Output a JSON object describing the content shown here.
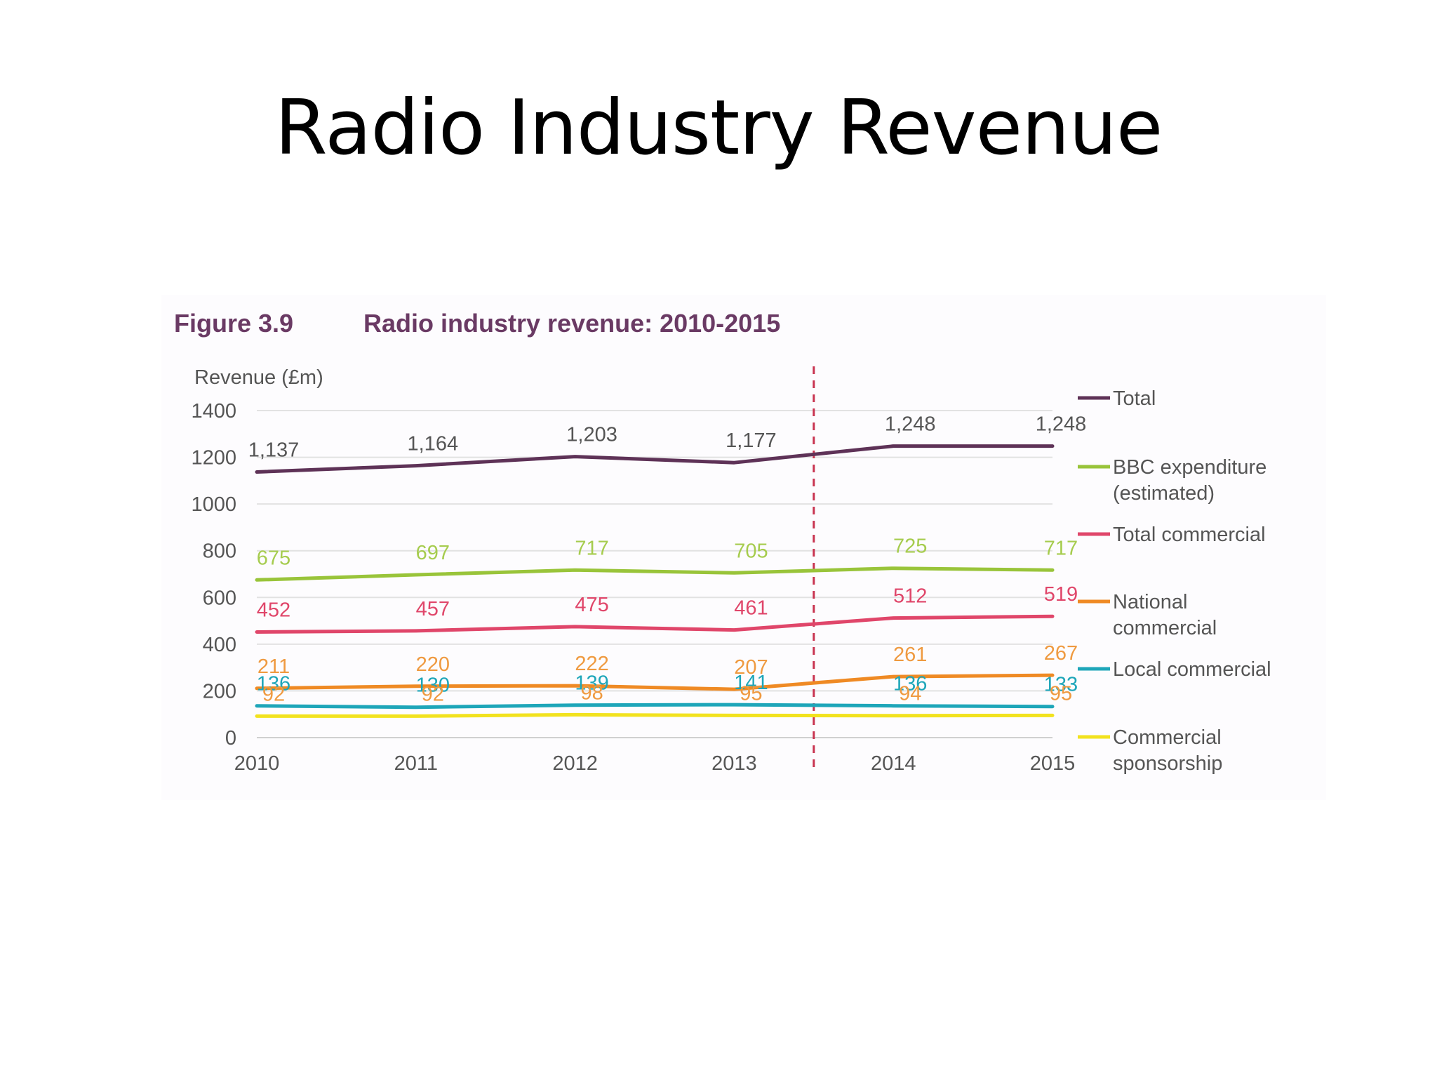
{
  "slide": {
    "title": "Radio Industry Revenue"
  },
  "figure": {
    "number": "Figure 3.9",
    "title": "Radio industry revenue: 2010-2015"
  },
  "chart_data": {
    "type": "line",
    "title": "Radio industry revenue: 2010-2015",
    "ylabel": "Revenue (£m)",
    "xlabel": "",
    "x": [
      2010,
      2011,
      2012,
      2013,
      2014,
      2015
    ],
    "xticklabels": [
      "2010",
      "2011",
      "2012",
      "2013",
      "2014",
      "2015"
    ],
    "ylim": [
      0,
      1400
    ],
    "yticks": [
      0,
      200,
      400,
      600,
      800,
      1000,
      1200,
      1400
    ],
    "grid": "horizontal",
    "legend_placement": "right",
    "divider_between": [
      2013,
      2014
    ],
    "series": [
      {
        "name": "Total",
        "color": "#5e3257",
        "label_color": "#555555",
        "values": [
          1137,
          1164,
          1203,
          1177,
          1248,
          1248
        ],
        "labels": [
          "1,137",
          "1,164",
          "1,203",
          "1,177",
          "1,248",
          "1,248"
        ]
      },
      {
        "name": "BBC expenditure (estimated)",
        "legend_lines": [
          "BBC expenditure",
          "(estimated)"
        ],
        "color": "#99c43a",
        "label_color": "#a6cc4e",
        "values": [
          675,
          697,
          717,
          705,
          725,
          717
        ],
        "labels": [
          "675",
          "697",
          "717",
          "705",
          "725",
          "717"
        ]
      },
      {
        "name": "Total commercial",
        "color": "#e0466a",
        "label_color": "#e0466a",
        "values": [
          452,
          457,
          475,
          461,
          512,
          519
        ],
        "labels": [
          "452",
          "457",
          "475",
          "461",
          "512",
          "519"
        ]
      },
      {
        "name": "National commercial",
        "legend_lines": [
          "National",
          "commercial"
        ],
        "color": "#ef8a24",
        "label_color": "#ef9a40",
        "values": [
          211,
          220,
          222,
          207,
          261,
          267
        ],
        "labels": [
          "211",
          "220",
          "222",
          "207",
          "261",
          "267"
        ]
      },
      {
        "name": "Local commercial",
        "color": "#1ea6b9",
        "label_color": "#1ea6b9",
        "values": [
          136,
          130,
          139,
          141,
          136,
          133
        ],
        "labels": [
          "136",
          "130",
          "139",
          "141",
          "136",
          "133"
        ]
      },
      {
        "name": "Commercial sponsorship",
        "legend_lines": [
          "Commercial",
          "sponsorship"
        ],
        "color": "#f2e21e",
        "label_color": "#ef9a40",
        "values": [
          92,
          92,
          98,
          95,
          94,
          95
        ],
        "labels": [
          "92",
          "92",
          "98",
          "95",
          "94",
          "95"
        ]
      }
    ]
  }
}
